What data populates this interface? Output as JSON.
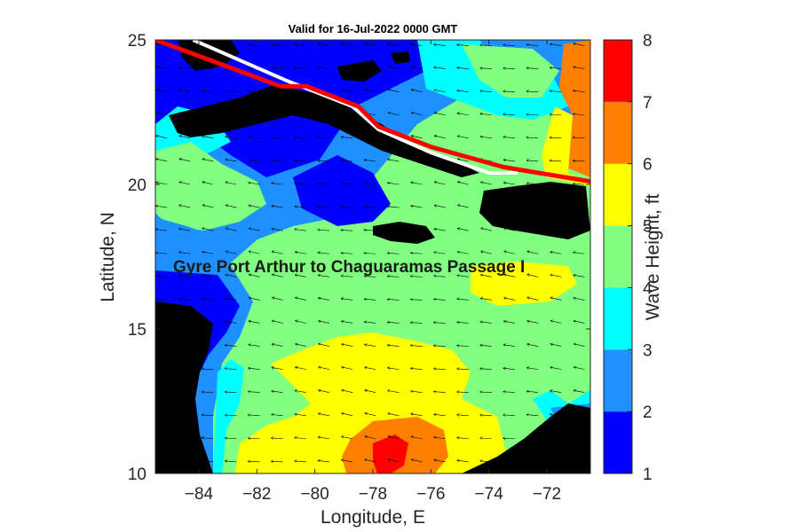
{
  "title": "Valid for 16-Jul-2022 0000 GMT",
  "route_label": "Gyre Port Arthur to Chaguaramas Passage I",
  "colors": {
    "land": "#000000",
    "level_1_2": "#0000ff",
    "level_2_3": "#1e90ff",
    "level_3_4": "#00ffff",
    "level_4_5": "#80ff80",
    "level_5_6": "#ffff00",
    "level_6_7": "#ff8000",
    "level_7_8": "#ff0000",
    "route_line": "#ff0000",
    "track_line": "#ffffff",
    "wind_arrows": "#000000"
  },
  "chart_data": {
    "type": "heatmap",
    "title": "Valid for 16-Jul-2022 0000 GMT",
    "xlabel": "Longitude, E",
    "ylabel": "Latitude, N",
    "xlim": [
      -85.5,
      -70.5
    ],
    "ylim": [
      10,
      25
    ],
    "xticks": [
      -84,
      -82,
      -80,
      -78,
      -76,
      -74,
      -72
    ],
    "yticks": [
      10,
      15,
      20,
      25
    ],
    "xtick_labels": [
      "−84",
      "−82",
      "−80",
      "−78",
      "−76",
      "−74",
      "−72"
    ],
    "ytick_labels": [
      "10",
      "15",
      "20",
      "25"
    ],
    "colorbar": {
      "label": "Wave Height, ft",
      "range": [
        1,
        8
      ],
      "ticks": [
        1,
        2,
        3,
        4,
        5,
        6,
        7,
        8
      ],
      "tick_labels": [
        "1",
        "2",
        "3",
        "4",
        "5",
        "6",
        "7",
        "8"
      ],
      "levels": [
        {
          "min": 1,
          "max": 2,
          "color": "#0000ff"
        },
        {
          "min": 2,
          "max": 3,
          "color": "#1e90ff"
        },
        {
          "min": 3,
          "max": 4,
          "color": "#00ffff"
        },
        {
          "min": 4,
          "max": 5,
          "color": "#80ff80"
        },
        {
          "min": 5,
          "max": 6,
          "color": "#ffff00"
        },
        {
          "min": 6,
          "max": 7,
          "color": "#ff8000"
        },
        {
          "min": 7,
          "max": 8,
          "color": "#ff0000"
        }
      ]
    },
    "route": {
      "label": "Gyre Port Arthur to Chaguaramas Passage I",
      "color": "#ff0000",
      "points": [
        [
          -85.5,
          25.0
        ],
        [
          -81.2,
          23.4
        ],
        [
          -80.3,
          23.4
        ],
        [
          -78.5,
          22.7
        ],
        [
          -77.8,
          22.0
        ],
        [
          -76.0,
          21.3
        ],
        [
          -73.5,
          20.6
        ],
        [
          -70.5,
          20.1
        ]
      ]
    },
    "track": {
      "color": "#ffffff",
      "points": [
        [
          -84.2,
          25.0
        ],
        [
          -81.0,
          23.6
        ],
        [
          -78.7,
          22.7
        ],
        [
          -77.8,
          21.9
        ],
        [
          -76.0,
          21.1
        ],
        [
          -74.0,
          20.4
        ],
        [
          -73.0,
          20.4
        ]
      ]
    },
    "wind_vectors": {
      "dominant_direction": "towards west / west-southwest",
      "grid_spacing_deg": 0.8
    }
  }
}
